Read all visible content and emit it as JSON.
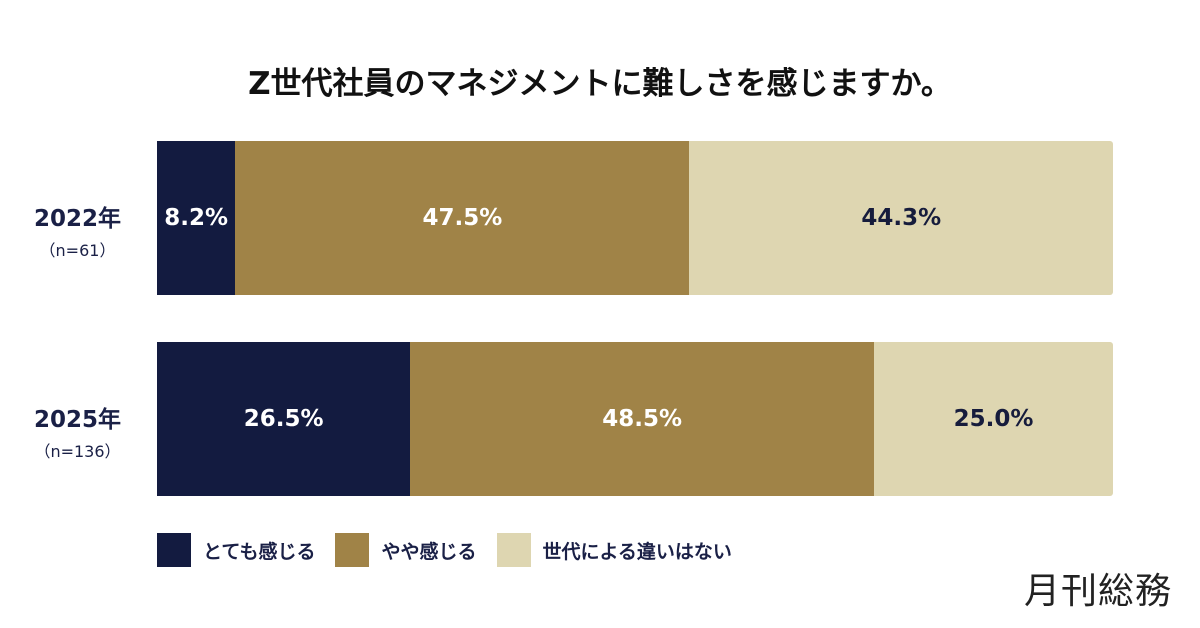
{
  "chart_data": {
    "type": "bar",
    "orientation": "horizontal-stacked-100",
    "title": "Z世代社員のマネジメントに難しさを感じますか。",
    "categories": [
      {
        "label": "2022年",
        "n": "（n=61）"
      },
      {
        "label": "2025年",
        "n": "（n=136）"
      }
    ],
    "series": [
      {
        "name": "とても感じる",
        "color": "#131b40",
        "text_color": "#ffffff",
        "values": [
          8.2,
          26.5
        ]
      },
      {
        "name": "やや感じる",
        "color": "#a08347",
        "text_color": "#ffffff",
        "values": [
          47.5,
          48.5
        ]
      },
      {
        "name": "世代による違いはない",
        "color": "#ded6b1",
        "text_color": "#161c3c",
        "values": [
          44.3,
          25.0
        ]
      }
    ],
    "value_labels": [
      [
        "8.2%",
        "47.5%",
        "44.3%"
      ],
      [
        "26.5%",
        "48.5%",
        "25.0%"
      ]
    ],
    "legend_position": "bottom-left",
    "grid": false
  },
  "brand": {
    "logo_text": "月刊総務"
  }
}
